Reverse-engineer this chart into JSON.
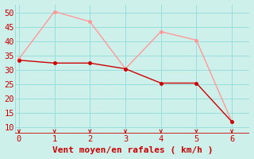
{
  "xlabel": "Vent moyen/en rafales ( km/h )",
  "x_mean": [
    0,
    1,
    2,
    3,
    4,
    5,
    6
  ],
  "y_mean": [
    33.5,
    32.5,
    32.5,
    30.5,
    25.5,
    25.5,
    12
  ],
  "x_gust": [
    0,
    1,
    2,
    3,
    4,
    5,
    6
  ],
  "y_gust": [
    34,
    50.5,
    47,
    30.5,
    43.5,
    40.5,
    12
  ],
  "mean_color": "#cc0000",
  "gust_color": "#ff9999",
  "bg_color": "#cef0eb",
  "grid_color": "#99dddd",
  "axis_color": "#cc0000",
  "text_color": "#cc0000",
  "xlim": [
    -0.1,
    6.5
  ],
  "ylim": [
    8,
    53
  ],
  "yticks": [
    10,
    15,
    20,
    25,
    30,
    35,
    40,
    45,
    50
  ],
  "xticks": [
    0,
    1,
    2,
    3,
    4,
    5,
    6
  ],
  "xlabel_fontsize": 8,
  "tick_fontsize": 7.5
}
